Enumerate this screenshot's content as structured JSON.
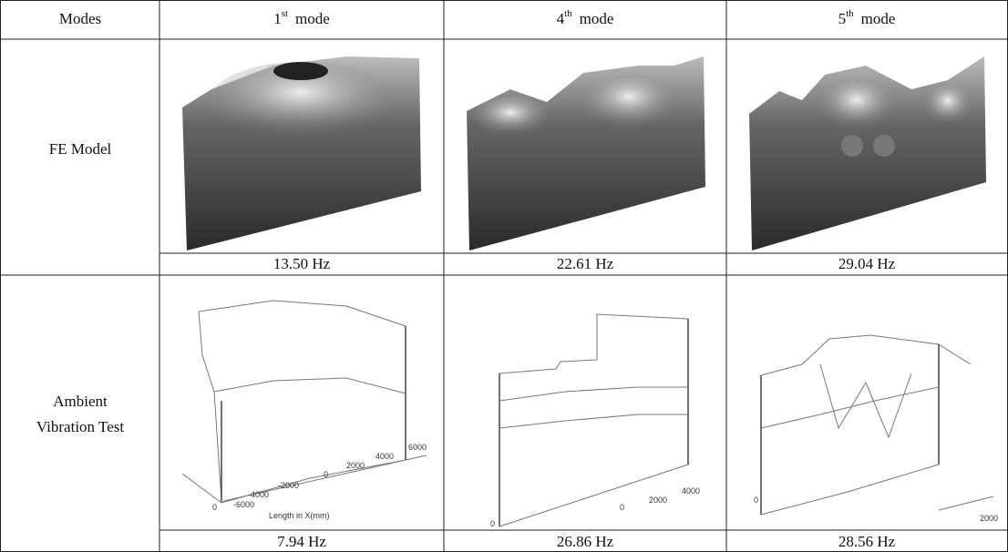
{
  "header": {
    "modes": "Modes",
    "columns": [
      {
        "ordinal": "1",
        "suffix": "st",
        "word": "mode"
      },
      {
        "ordinal": "4",
        "suffix": "th",
        "word": "mode"
      },
      {
        "ordinal": "5",
        "suffix": "th",
        "word": "mode"
      }
    ]
  },
  "rows": [
    {
      "label": [
        "FE Model"
      ],
      "frequencies": [
        "13.50 Hz",
        "22.61 Hz",
        "29.04 Hz"
      ]
    },
    {
      "label": [
        "Ambient",
        "Vibration Test"
      ],
      "frequencies": [
        "7.94 Hz",
        "26.86 Hz",
        "28.56 Hz"
      ],
      "axis_labels": [
        [
          "6000",
          "4000",
          "2000",
          "0",
          "-2000",
          "-4000",
          "-6000",
          "0",
          "Length in X(mm)"
        ],
        [
          "4000",
          "2000",
          "0",
          "0"
        ],
        [
          "0",
          "2000"
        ]
      ]
    }
  ]
}
